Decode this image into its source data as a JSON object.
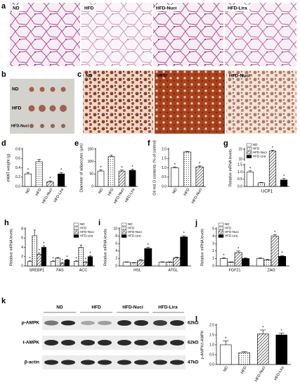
{
  "figure": {
    "a": {
      "letter": "a",
      "labels": [
        "ND",
        "HFD",
        "HFD-Nuci",
        "HFD-Lira"
      ]
    },
    "b": {
      "letter": "b",
      "labels": [
        "ND",
        "HFD",
        "HFD-Nuci"
      ]
    },
    "c": {
      "letter": "c",
      "labels": [
        "ND",
        "HFD",
        "HFD-Nuci"
      ]
    },
    "k": {
      "letter": "k",
      "groups": [
        "ND",
        "HFD",
        "HFD-Nuci",
        "HFD-Lira"
      ],
      "rows": [
        {
          "label": "p-AMPK",
          "size": "62kD"
        },
        {
          "label": "t-AMPK",
          "size": "62kD"
        },
        {
          "label": "β-actin",
          "size": "47kD"
        }
      ]
    }
  },
  "chart_data": [
    {
      "type": "bar",
      "panel": "d",
      "ylabel": "eWAT weight  (g)",
      "categories": [
        "ND",
        "HFD",
        "HFD-Nuci",
        "HFD-Lira"
      ],
      "values": [
        0.27,
        0.53,
        0.1,
        0.27
      ],
      "errors": [
        0.03,
        0.05,
        0.02,
        0.03
      ],
      "sig": [
        "*",
        null,
        "*",
        "*"
      ],
      "colors": [
        "#ffffff",
        "#ffffff",
        "#ffffff",
        "#000000"
      ],
      "patterns": [
        null,
        "dots",
        "hatch",
        null
      ],
      "ylim": [
        0,
        0.8
      ],
      "yticks": [
        {
          "value": 0,
          "label": "0.0"
        },
        {
          "value": 0.2,
          "label": "0.2"
        },
        {
          "value": 0.4,
          "label": "0.4"
        },
        {
          "value": 0.6,
          "label": "0.6"
        },
        {
          "value": 0.8,
          "label": "0.8"
        }
      ]
    },
    {
      "type": "bar",
      "panel": "e",
      "ylabel": "Diameter of adipocytes (μm)",
      "categories": [
        "ND",
        "HFD",
        "HFD-Nuci",
        "HFD-Lira"
      ],
      "values": [
        62,
        120,
        62,
        65
      ],
      "errors": [
        5,
        6,
        4,
        5
      ],
      "sig": [
        "*",
        null,
        "*",
        "*"
      ],
      "colors": [
        "#ffffff",
        "#ffffff",
        "#ffffff",
        "#000000"
      ],
      "patterns": [
        null,
        "dots",
        "hatch",
        null
      ],
      "ylim": [
        0,
        150
      ],
      "yticks": [
        0,
        50,
        100,
        150
      ]
    },
    {
      "type": "bar",
      "panel": "f",
      "ylabel": "Oil red O contents (% of control)",
      "categories": [
        "ND",
        "HFD",
        "HFD-Nuci"
      ],
      "values": [
        1.0,
        1.85,
        1.05
      ],
      "errors": [
        0.05,
        0.03,
        0.05
      ],
      "sig": [
        "*",
        null,
        "*"
      ],
      "colors": [
        "#ffffff",
        "#ffffff",
        "#ffffff"
      ],
      "patterns": [
        null,
        "dots",
        "hatch"
      ],
      "ylim": [
        0,
        2
      ],
      "yticks": [
        {
          "value": 0,
          "label": "0.0"
        },
        {
          "value": 0.5,
          "label": "0.5"
        },
        {
          "value": 1,
          "label": "1.0"
        },
        {
          "value": 1.5,
          "label": "1.5"
        },
        {
          "value": 2,
          "label": "2.0"
        }
      ]
    },
    {
      "type": "bar",
      "panel": "g",
      "ylabel": "Relative mRNA levels",
      "xlabel": "UCP1",
      "legend": "upper left",
      "categories": [
        "ND",
        "HFD",
        "HFD-Nuci",
        "HFD-Lira"
      ],
      "values": [
        1.0,
        0.25,
        14,
        0.45
      ],
      "errors": [
        0.08,
        0.03,
        0.5,
        0.1
      ],
      "sig": [
        "*",
        null,
        "*",
        "*"
      ],
      "colors": [
        "#ffffff",
        "#ffffff",
        "#ffffff",
        "#000000"
      ],
      "patterns": [
        null,
        "dots",
        "hatch",
        null
      ],
      "ylim": [
        0,
        15
      ],
      "ybreak": [
        1.6,
        9
      ],
      "yticks": [
        {
          "value": 0,
          "label": "0.0"
        },
        {
          "value": 0.5,
          "label": "0.5"
        },
        {
          "value": 1,
          "label": "1.0"
        },
        {
          "value": 1.5,
          "label": "1.5"
        },
        10,
        15
      ]
    },
    {
      "type": "bar",
      "panel": "h",
      "ylabel": "Relative mRNA levels",
      "legend": "upper right",
      "categories": [
        "SREBP1",
        "FAS",
        "ACC"
      ],
      "series": [
        {
          "name": "ND",
          "color": "#ffffff",
          "pattern": null,
          "values": [
            1,
            1,
            1
          ],
          "errors": [
            0.1,
            0.1,
            0.1
          ],
          "sig": [
            "*",
            "*",
            "*"
          ]
        },
        {
          "name": "HFD",
          "color": "#ffffff",
          "pattern": "dots",
          "values": [
            6.5,
            1.7,
            4.0
          ],
          "errors": [
            1.2,
            0.1,
            0.5
          ],
          "sig": [
            null,
            null,
            null
          ]
        },
        {
          "name": "HFD-Nuci",
          "color": "#ffffff",
          "pattern": "hatch",
          "values": [
            2.5,
            0.6,
            0.8
          ],
          "errors": [
            0.3,
            0.1,
            0.1
          ],
          "sig": [
            "*",
            "*",
            "*"
          ]
        },
        {
          "name": "HFD-Lira",
          "color": "#000000",
          "pattern": null,
          "values": [
            4.0,
            1.3,
            2.0
          ],
          "errors": [
            0.3,
            0.1,
            0.2
          ],
          "sig": [
            "*",
            "*",
            "*"
          ]
        }
      ],
      "ylim": [
        0,
        8
      ],
      "yticks": [
        0,
        2,
        4,
        6,
        8
      ]
    },
    {
      "type": "bar",
      "panel": "i",
      "ylabel": "Relative mRNA levels",
      "legend": "upper left",
      "categories": [
        "HSL",
        "ATGL"
      ],
      "series": [
        {
          "name": "ND",
          "color": "#ffffff",
          "pattern": null,
          "values": [
            1,
            1
          ],
          "errors": [
            0.1,
            0.1
          ],
          "sig": [
            null,
            null
          ]
        },
        {
          "name": "HFD",
          "color": "#ffffff",
          "pattern": "dots",
          "values": [
            0.8,
            1.0
          ],
          "errors": [
            0.1,
            0.1
          ],
          "sig": [
            null,
            null
          ]
        },
        {
          "name": "HFD-Nuci",
          "color": "#ffffff",
          "pattern": "hatch",
          "values": [
            1.5,
            2.2
          ],
          "errors": [
            0.2,
            0.2
          ],
          "sig": [
            null,
            null
          ]
        },
        {
          "name": "HFD-Lira",
          "color": "#000000",
          "pattern": null,
          "values": [
            4.7,
            7.8
          ],
          "errors": [
            0.3,
            0.3
          ],
          "sig": [
            "*",
            "*"
          ]
        }
      ],
      "ylim": [
        0,
        10
      ],
      "yticks": [
        0,
        2,
        4,
        6,
        8,
        10
      ]
    },
    {
      "type": "bar",
      "panel": "j",
      "ylabel": "Relative mRNA levels",
      "legend": "upper left",
      "categories": [
        "FGF21",
        "ZAG"
      ],
      "series": [
        {
          "name": "ND",
          "color": "#ffffff",
          "pattern": null,
          "values": [
            1,
            1
          ],
          "errors": [
            0.1,
            0.1
          ],
          "sig": [
            "*",
            null
          ]
        },
        {
          "name": "HFD",
          "color": "#ffffff",
          "pattern": "dots",
          "values": [
            0.5,
            0.8
          ],
          "errors": [
            0.05,
            0.1
          ],
          "sig": [
            null,
            null
          ]
        },
        {
          "name": "HFD-Nuci",
          "color": "#ffffff",
          "pattern": "hatch",
          "values": [
            1.8,
            4.0
          ],
          "errors": [
            0.2,
            0.2
          ],
          "sig": [
            "*",
            "*"
          ]
        },
        {
          "name": "HFD-Lira",
          "color": "#000000",
          "pattern": null,
          "values": [
            1.0,
            1.3
          ],
          "errors": [
            0.1,
            0.1
          ],
          "sig": [
            null,
            "*"
          ]
        }
      ],
      "ylim": [
        0,
        5
      ],
      "yticks": [
        0,
        1,
        2,
        3,
        4,
        5
      ]
    },
    {
      "type": "bar",
      "panel": "l",
      "ylabel": "p-AMPK/t-AMPK",
      "categories": [
        "ND",
        "HFD",
        "HFD-Nuci",
        "HFD-Lira"
      ],
      "values": [
        1.0,
        0.6,
        1.55,
        1.5
      ],
      "errors": [
        0.2,
        0.05,
        0.2,
        0.1
      ],
      "sig": [
        "*",
        null,
        "*",
        "*"
      ],
      "colors": [
        "#ffffff",
        "#ffffff",
        "#ffffff",
        "#000000"
      ],
      "patterns": [
        null,
        "dots",
        "hatch",
        null
      ],
      "ylim": [
        0,
        2
      ],
      "yticks": [
        {
          "value": 0,
          "label": "0.0"
        },
        {
          "value": 0.5,
          "label": "0.5"
        },
        {
          "value": 1,
          "label": "1.0"
        },
        {
          "value": 1.5,
          "label": "1.5"
        },
        {
          "value": 2,
          "label": "2.0"
        }
      ]
    }
  ]
}
